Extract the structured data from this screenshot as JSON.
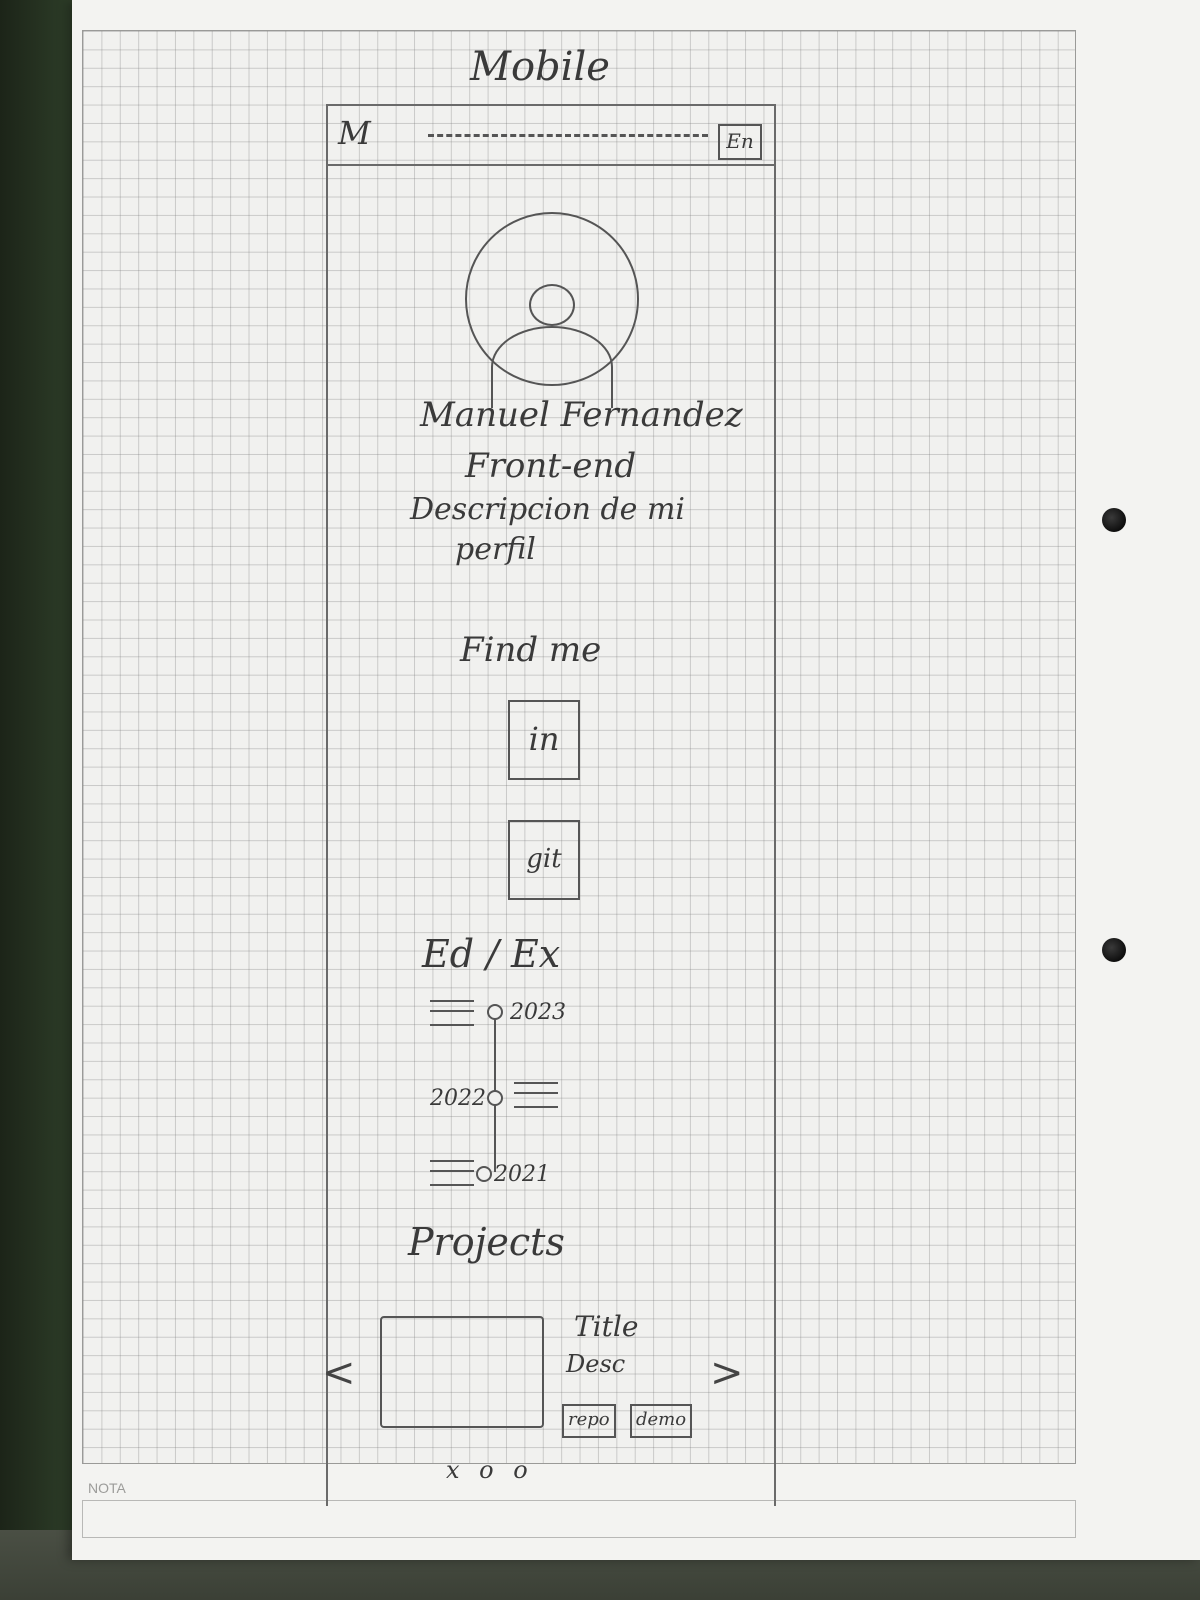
{
  "sheet": {
    "heading": "Mobile",
    "footer_label": "NOTA"
  },
  "header": {
    "logo": "M",
    "nav_placeholder": "— — — — —",
    "language": "En"
  },
  "profile": {
    "name": "Manuel Fernandez",
    "role": "Front-end",
    "description_line1": "Descripcion de mi",
    "description_line2": "perfil"
  },
  "social": {
    "heading": "Find me",
    "linkedin": "in",
    "github": "git"
  },
  "timeline": {
    "heading": "Ed / Ex",
    "entries": [
      {
        "year": "2023"
      },
      {
        "year": "2022"
      },
      {
        "year": "2021"
      }
    ]
  },
  "projects": {
    "heading": "Projects",
    "card_title": "Title",
    "card_desc": "Desc",
    "repo_button": "repo",
    "demo_button": "demo",
    "prev": "<",
    "next": ">",
    "pagination": "x o o"
  }
}
